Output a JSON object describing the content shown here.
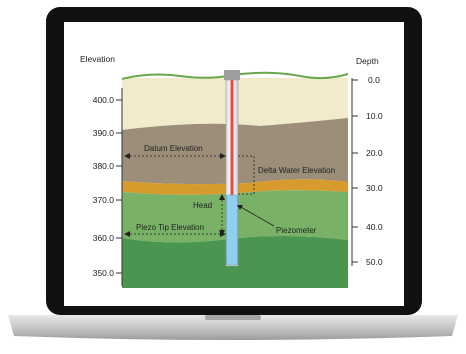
{
  "diagram": {
    "elevation_title": "Elevation",
    "depth_title": "Depth",
    "elevation_ticks": [
      "400.0",
      "390.0",
      "380.0",
      "370.0",
      "360.0",
      "350.0"
    ],
    "depth_ticks": [
      "0.0",
      "10.0",
      "20.0",
      "30.0",
      "40.0",
      "50.0"
    ],
    "annotations": {
      "datum_elevation": "Datum Elevation",
      "delta_water_elevation": "Delta Water Elevation",
      "head": "Head",
      "piezo_tip_elevation": "Piezo Tip Elevation",
      "piezometer": "Piezometer"
    },
    "colors": {
      "laptop_bezel": "#111111",
      "laptop_body": "#c9c9c9",
      "topsoil": "#f1ebcb",
      "clay_brown": "#9d8e79",
      "sand_orange": "#d79a2c",
      "water_green_light": "#79b266",
      "water_green_dark": "#4a9550",
      "grass_line": "#6aa84f",
      "piezometer_water": "#8fd0f0",
      "piezometer_pipe": "#e34b4b"
    }
  }
}
